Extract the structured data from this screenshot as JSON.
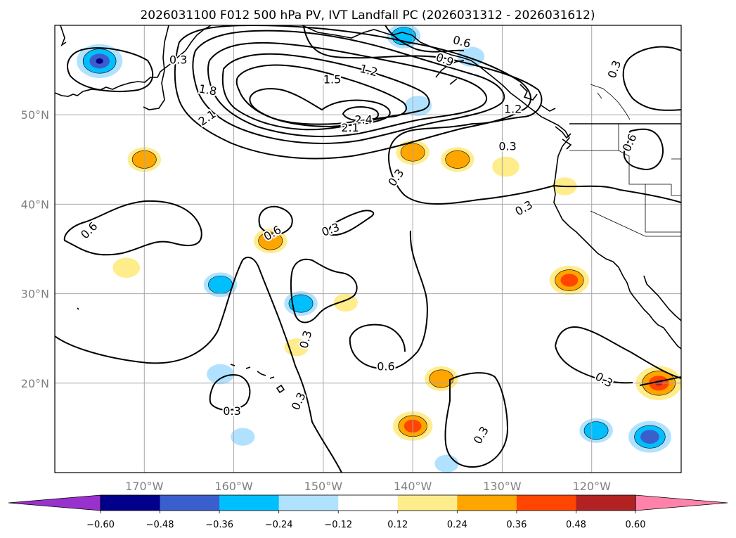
{
  "chart_data": {
    "type": "heatmap",
    "title": "2026031100 F012 500 hPa PV, IVT Landfall PC (2026031312 - 2026031612)",
    "projection": "PlateCarree",
    "lon_range": [
      -180,
      -110
    ],
    "lat_range": [
      10,
      60
    ],
    "x_ticks": [
      {
        "value": -170,
        "label": "170°W"
      },
      {
        "value": -160,
        "label": "160°W"
      },
      {
        "value": -150,
        "label": "150°W"
      },
      {
        "value": -140,
        "label": "140°W"
      },
      {
        "value": -130,
        "label": "130°W"
      },
      {
        "value": -120,
        "label": "120°W"
      }
    ],
    "y_ticks": [
      {
        "value": 50,
        "label": "50°N"
      },
      {
        "value": 40,
        "label": "40°N"
      },
      {
        "value": 30,
        "label": "30°N"
      },
      {
        "value": 20,
        "label": "20°N"
      }
    ],
    "grid": true,
    "colorbar": {
      "orientation": "horizontal",
      "extend": "both",
      "boundaries": [
        -0.6,
        -0.48,
        -0.36,
        -0.24,
        -0.12,
        0.12,
        0.24,
        0.36,
        0.48,
        0.6
      ],
      "tick_labels": [
        "−0.60",
        "−0.48",
        "−0.36",
        "−0.24",
        "−0.12",
        "0.12",
        "0.24",
        "0.36",
        "0.48",
        "0.60"
      ],
      "colors": [
        "#9932cc",
        "#00008b",
        "#3a5fcd",
        "#00bfff",
        "#b0e2ff",
        "#ffffff",
        "#ffec8b",
        "#ffa500",
        "#ff4500",
        "#b22222",
        "#ff82ab"
      ]
    },
    "pv_contours": {
      "levels": [
        0.3,
        0.6,
        0.9,
        1.2,
        1.5,
        1.8,
        2.1,
        2.4
      ],
      "labels": [
        {
          "text": "0.3",
          "lon": -166.2,
          "lat": 56.2,
          "angle": 0
        },
        {
          "text": "0.6",
          "lon": -134.5,
          "lat": 58.2,
          "angle": 15
        },
        {
          "text": "0.9",
          "lon": -136.4,
          "lat": 56.2,
          "angle": 20
        },
        {
          "text": "1.2",
          "lon": -144.9,
          "lat": 55.0,
          "angle": 15
        },
        {
          "text": "1.5",
          "lon": -149.0,
          "lat": 54.0,
          "angle": 0
        },
        {
          "text": "1.8",
          "lon": -162.9,
          "lat": 52.8,
          "angle": 10
        },
        {
          "text": "2.1",
          "lon": -163.0,
          "lat": 49.7,
          "angle": -35
        },
        {
          "text": "2.4",
          "lon": -145.5,
          "lat": 49.5,
          "angle": 0
        },
        {
          "text": "2.1",
          "lon": -147.0,
          "lat": 48.6,
          "angle": 0
        },
        {
          "text": "1.2",
          "lon": -128.8,
          "lat": 50.7,
          "angle": 0
        },
        {
          "text": "0.3",
          "lon": -117.5,
          "lat": 55.1,
          "angle": -70
        },
        {
          "text": "0.6",
          "lon": -115.8,
          "lat": 46.9,
          "angle": -65
        },
        {
          "text": "0.3",
          "lon": -129.4,
          "lat": 46.5,
          "angle": 0
        },
        {
          "text": "0.3",
          "lon": -141.9,
          "lat": 43.0,
          "angle": -55
        },
        {
          "text": "0.3",
          "lon": -127.6,
          "lat": 39.6,
          "angle": -30
        },
        {
          "text": "0.6",
          "lon": -176.2,
          "lat": 37.1,
          "angle": -45
        },
        {
          "text": "0.6",
          "lon": -155.7,
          "lat": 36.8,
          "angle": -30
        },
        {
          "text": "0.3",
          "lon": -149.2,
          "lat": 37.2,
          "angle": -20
        },
        {
          "text": "0.3",
          "lon": -152.0,
          "lat": 24.9,
          "angle": -75
        },
        {
          "text": "0.6",
          "lon": -143.0,
          "lat": 21.9,
          "angle": 0
        },
        {
          "text": "0.3",
          "lon": -118.6,
          "lat": 20.4,
          "angle": 30
        },
        {
          "text": "0.3",
          "lon": -152.8,
          "lat": 18.0,
          "angle": -65
        },
        {
          "text": "0.3",
          "lon": -160.2,
          "lat": 16.9,
          "angle": 0
        },
        {
          "text": "0.3",
          "lon": -132.4,
          "lat": 14.2,
          "angle": -60
        }
      ]
    },
    "ivt_pc_anomalies": [
      {
        "sign": "negative",
        "lon": -175.0,
        "lat": 56.0,
        "peak": -0.5
      },
      {
        "sign": "negative",
        "lon": -141.0,
        "lat": 58.8,
        "peak": -0.3
      },
      {
        "sign": "negative",
        "lon": -133.5,
        "lat": 56.5,
        "peak": -0.2
      },
      {
        "sign": "negative",
        "lon": -139.4,
        "lat": 51.0,
        "peak": -0.2
      },
      {
        "sign": "positive",
        "lon": -140.0,
        "lat": 45.8,
        "peak": 0.3
      },
      {
        "sign": "positive",
        "lon": -135.0,
        "lat": 45.0,
        "peak": 0.3
      },
      {
        "sign": "positive",
        "lon": -129.6,
        "lat": 44.2,
        "peak": 0.2
      },
      {
        "sign": "positive",
        "lon": -123.0,
        "lat": 42.0,
        "peak": 0.15
      },
      {
        "sign": "positive",
        "lon": -170.0,
        "lat": 45.0,
        "peak": 0.3
      },
      {
        "sign": "positive",
        "lon": -155.9,
        "lat": 35.9,
        "peak": 0.3
      },
      {
        "sign": "positive",
        "lon": -172.0,
        "lat": 32.9,
        "peak": 0.2
      },
      {
        "sign": "negative",
        "lon": -161.5,
        "lat": 31.0,
        "peak": -0.3
      },
      {
        "sign": "negative",
        "lon": -152.5,
        "lat": 28.9,
        "peak": -0.3
      },
      {
        "sign": "positive",
        "lon": -147.5,
        "lat": 29.0,
        "peak": 0.15
      },
      {
        "sign": "positive",
        "lon": -153.0,
        "lat": 24.0,
        "peak": 0.15
      },
      {
        "sign": "positive",
        "lon": -122.5,
        "lat": 31.5,
        "peak": 0.4
      },
      {
        "sign": "negative",
        "lon": -161.5,
        "lat": 21.0,
        "peak": -0.2
      },
      {
        "sign": "positive",
        "lon": -136.8,
        "lat": 20.5,
        "peak": 0.3
      },
      {
        "sign": "positive",
        "lon": -140.0,
        "lat": 15.2,
        "peak": 0.4
      },
      {
        "sign": "negative",
        "lon": -119.5,
        "lat": 14.7,
        "peak": -0.3
      },
      {
        "sign": "negative",
        "lon": -113.5,
        "lat": 14.0,
        "peak": -0.45
      },
      {
        "sign": "positive",
        "lon": -112.5,
        "lat": 20.0,
        "peak": 0.5
      },
      {
        "sign": "negative",
        "lon": -159.0,
        "lat": 14.0,
        "peak": -0.15
      },
      {
        "sign": "negative",
        "lon": -136.2,
        "lat": 11.0,
        "peak": -0.15
      }
    ]
  }
}
